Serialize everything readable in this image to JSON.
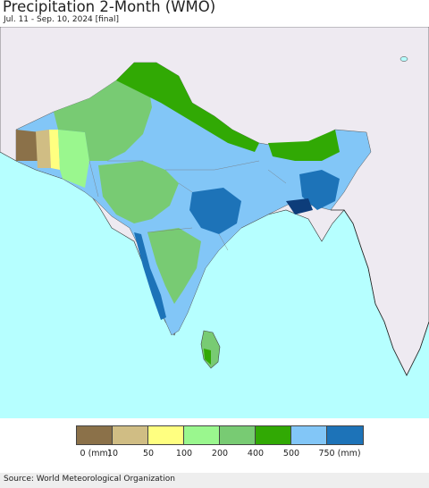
{
  "header": {
    "title": "Precipitation 2-Month (WMO)",
    "subtitle": "Jul. 11 - Sep. 10, 2024 [final]"
  },
  "legend": {
    "items": [
      {
        "color": "#8b7149",
        "label": "0 (mm)"
      },
      {
        "color": "#d0bd84",
        "label": "10"
      },
      {
        "color": "#ffff80",
        "label": "50"
      },
      {
        "color": "#9af78e",
        "label": "100"
      },
      {
        "color": "#78cb73",
        "label": "200"
      },
      {
        "color": "#31a904",
        "label": "400"
      },
      {
        "color": "#82c6f7",
        "label": "500"
      },
      {
        "color": "#1d73b8",
        "label": "750 (mm)"
      }
    ]
  },
  "map": {
    "ocean_color": "#b6ffff",
    "land_outside_color": "#eeeaf1"
  },
  "footer": {
    "source": "Source: World Meteorological Organization"
  }
}
